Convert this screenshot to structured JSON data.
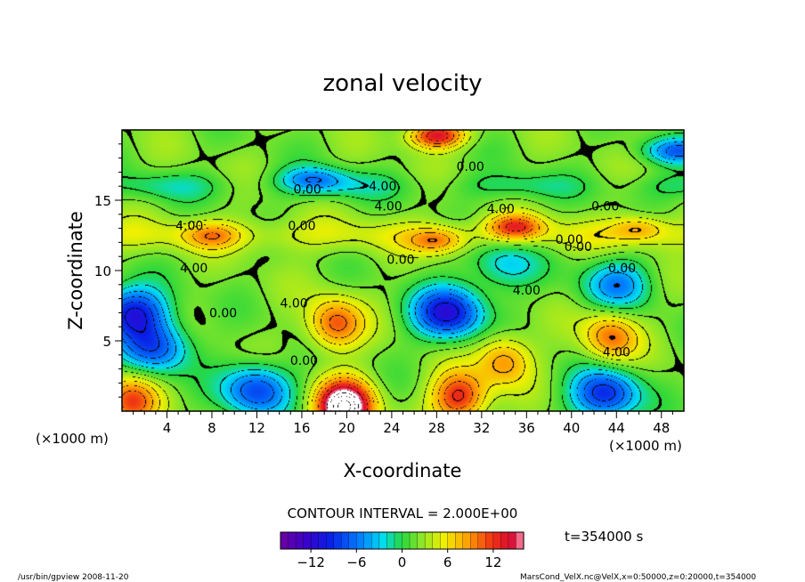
{
  "chart_data": {
    "type": "heatmap",
    "title": "zonal velocity",
    "xlabel": "X-coordinate",
    "ylabel": "Z-coordinate",
    "x_unit_left": "(×1000 m)",
    "x_unit_right": "(×1000 m)",
    "xlim": [
      0,
      50
    ],
    "ylim": [
      0,
      20
    ],
    "x_ticks": [
      4,
      8,
      12,
      16,
      20,
      24,
      28,
      32,
      36,
      40,
      44,
      48
    ],
    "y_ticks": [
      5,
      10,
      15
    ],
    "contour_interval_text": "CONTOUR INTERVAL = 2.000E+00",
    "time_text": "t=354000 s",
    "colorbar": {
      "min": -16,
      "max": 16,
      "ticks": [
        -12,
        -6,
        0,
        6,
        12
      ]
    },
    "contour_labels": [
      {
        "text": "0.00",
        "x": 31,
        "z": 17.4
      },
      {
        "text": "0.00",
        "x": 16.5,
        "z": 15.8
      },
      {
        "text": "4.00",
        "x": 23.2,
        "z": 16.0
      },
      {
        "text": "4.00",
        "x": 23.7,
        "z": 14.6
      },
      {
        "text": "4.00",
        "x": 33.7,
        "z": 14.4
      },
      {
        "text": "0.00",
        "x": 43.0,
        "z": 14.6
      },
      {
        "text": "4.00",
        "x": 6.0,
        "z": 13.2
      },
      {
        "text": "0.00",
        "x": 16.0,
        "z": 13.2
      },
      {
        "text": "0.00",
        "x": 39.8,
        "z": 12.2
      },
      {
        "text": "0.00",
        "x": 40.6,
        "z": 11.7
      },
      {
        "text": "0.00",
        "x": 24.8,
        "z": 10.8
      },
      {
        "text": "4.00",
        "x": 6.4,
        "z": 10.2
      },
      {
        "text": "0.00",
        "x": 44.5,
        "z": 10.2
      },
      {
        "text": "4.00",
        "x": 36.0,
        "z": 8.6
      },
      {
        "text": "4.00",
        "x": 15.3,
        "z": 7.7
      },
      {
        "text": "0.00",
        "x": 9.0,
        "z": 7.0
      },
      {
        "text": "0.00",
        "x": 16.2,
        "z": 3.6
      },
      {
        "text": "4.00",
        "x": 44.0,
        "z": 4.2
      }
    ],
    "features": [
      {
        "kind": "max",
        "x": 19.0,
        "z": 6.2,
        "value": 9
      },
      {
        "kind": "min",
        "x": 29.0,
        "z": 7.0,
        "value": -13
      },
      {
        "kind": "max",
        "x": 43.5,
        "z": 5.3,
        "value": 8
      },
      {
        "kind": "max",
        "x": 35.0,
        "z": 13.1,
        "value": 9
      },
      {
        "kind": "max",
        "x": 28.0,
        "z": 12.1,
        "value": 6
      },
      {
        "kind": "max",
        "x": 30.0,
        "z": 1.0,
        "value": 11
      },
      {
        "kind": "max",
        "x": 28.0,
        "z": 19.6,
        "value": 12
      },
      {
        "kind": "min",
        "x": 43.0,
        "z": 1.2,
        "value": -11
      },
      {
        "kind": "min",
        "x": 12.0,
        "z": 1.5,
        "value": -10
      },
      {
        "kind": "min",
        "x": 1.0,
        "z": 7.0,
        "value": -12
      },
      {
        "kind": "min",
        "x": 3.0,
        "z": 4.5,
        "value": -9
      },
      {
        "kind": "min",
        "x": 17.0,
        "z": 16.5,
        "value": -6
      },
      {
        "kind": "min",
        "x": 44.0,
        "z": 9.0,
        "value": -7
      },
      {
        "kind": "min",
        "x": 34.0,
        "z": 10.5,
        "value": -5
      },
      {
        "kind": "max",
        "x": 34.0,
        "z": 3.6,
        "value": 7
      },
      {
        "kind": "max",
        "x": 0.8,
        "z": 0.7,
        "value": 9
      },
      {
        "kind": "max",
        "x": 8.0,
        "z": 12.5,
        "value": 5
      },
      {
        "kind": "max",
        "x": 46.0,
        "z": 13.0,
        "value": 5
      },
      {
        "kind": "min",
        "x": 49.5,
        "z": 18.5,
        "value": -8
      },
      {
        "kind": "max",
        "x": 19.8,
        "z": 0.3,
        "value": 20
      }
    ]
  },
  "footer": {
    "left": "/usr/bin/gpview   2008-11-20",
    "right": "MarsCond_VelX.nc@VelX,x=0:50000,z=0:20000,t=354000"
  }
}
